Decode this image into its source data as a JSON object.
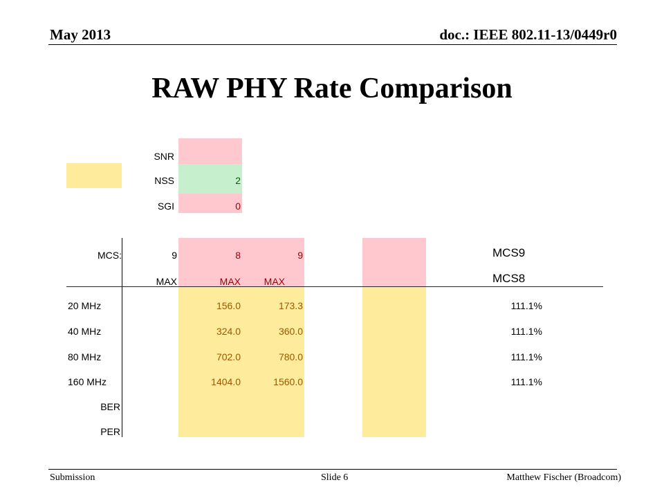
{
  "header": {
    "date": "May 2013",
    "doc": "doc.: IEEE 802.11-13/0449r0"
  },
  "title": "RAW PHY Rate Comparison",
  "params": {
    "snr_label": "SNR",
    "nss_label": "NSS",
    "nss_value": "2",
    "sgi_label": "SGI",
    "sgi_value": "0"
  },
  "table": {
    "mcs_label": "MCS:",
    "mcs_values": [
      "9",
      "8",
      "9"
    ],
    "max_labels": [
      "MAX",
      "MAX",
      "MAX"
    ],
    "ratio_header_1": "MCS9",
    "ratio_header_2": "MCS8",
    "rows": [
      {
        "label": "20 MHz",
        "mcs8": "156.0",
        "mcs9": "173.3",
        "ratio": "111.1%"
      },
      {
        "label": "40 MHz",
        "mcs8": "324.0",
        "mcs9": "360.0",
        "ratio": "111.1%"
      },
      {
        "label": "80 MHz",
        "mcs8": "702.0",
        "mcs9": "780.0",
        "ratio": "111.1%"
      },
      {
        "label": "160 MHz",
        "mcs8": "1404.0",
        "mcs9": "1560.0",
        "ratio": "111.1%"
      }
    ],
    "ber_label": "BER",
    "per_label": "PER"
  },
  "colors": {
    "pink": "#ffc7ce",
    "green": "#c6efce",
    "yellow": "#ffeb9c"
  },
  "footer": {
    "left": "Submission",
    "center": "Slide 6",
    "right": "Matthew Fischer (Broadcom)"
  }
}
